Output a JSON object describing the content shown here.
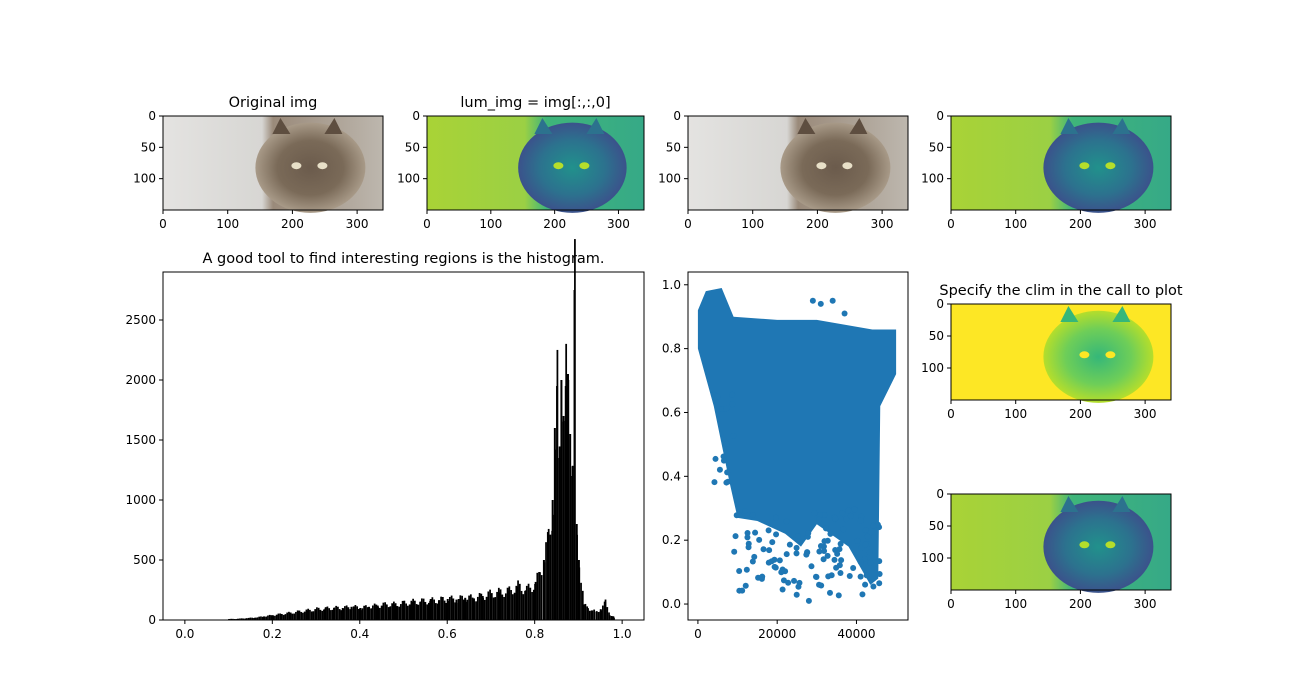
{
  "chart_data": [
    {
      "id": "p1",
      "type": "image",
      "title": "Original img",
      "colormap": "rgb",
      "xticks": [
        "0",
        "100",
        "200",
        "300"
      ],
      "yticks": [
        "0",
        "50",
        "100"
      ],
      "xlim": [
        0,
        340
      ],
      "ylim": [
        0,
        150
      ]
    },
    {
      "id": "p2",
      "type": "image",
      "title": "lum_img = img[:,:,0]",
      "colormap": "viridis",
      "xticks": [
        "0",
        "100",
        "200",
        "300"
      ],
      "yticks": [
        "0",
        "50",
        "100"
      ],
      "xlim": [
        0,
        340
      ],
      "ylim": [
        0,
        150
      ]
    },
    {
      "id": "p3",
      "type": "image",
      "title": "",
      "colormap": "rgb",
      "xticks": [
        "0",
        "100",
        "200",
        "300"
      ],
      "yticks": [
        "0",
        "50",
        "100"
      ],
      "xlim": [
        0,
        340
      ],
      "ylim": [
        0,
        150
      ]
    },
    {
      "id": "p4",
      "type": "image",
      "title": "",
      "colormap": "viridis",
      "xticks": [
        "0",
        "100",
        "200",
        "300"
      ],
      "yticks": [
        "0",
        "50",
        "100"
      ],
      "xlim": [
        0,
        340
      ],
      "ylim": [
        0,
        150
      ]
    },
    {
      "id": "hist",
      "type": "bar",
      "title": "A good tool to find interesting regions is the histogram.",
      "color": "#000000",
      "xlim": [
        -0.05,
        1.05
      ],
      "ylim": [
        0,
        2900
      ],
      "xticks": [
        "0.0",
        "0.2",
        "0.4",
        "0.6",
        "0.8",
        "1.0"
      ],
      "yticks": [
        "0",
        "500",
        "1000",
        "1500",
        "2000",
        "2500"
      ],
      "bin_width": 0.004,
      "x": [
        0.1,
        0.12,
        0.14,
        0.16,
        0.18,
        0.2,
        0.22,
        0.24,
        0.26,
        0.28,
        0.3,
        0.32,
        0.34,
        0.36,
        0.38,
        0.4,
        0.42,
        0.44,
        0.46,
        0.48,
        0.5,
        0.52,
        0.54,
        0.56,
        0.58,
        0.6,
        0.62,
        0.64,
        0.66,
        0.68,
        0.7,
        0.72,
        0.74,
        0.76,
        0.78,
        0.8,
        0.81,
        0.82,
        0.83,
        0.84,
        0.845,
        0.85,
        0.855,
        0.86,
        0.865,
        0.87,
        0.875,
        0.88,
        0.885,
        0.89,
        0.895,
        0.9,
        0.91,
        0.92,
        0.93,
        0.94,
        0.95,
        0.96,
        0.97,
        0.98
      ],
      "values": [
        8,
        10,
        15,
        20,
        30,
        40,
        50,
        60,
        70,
        80,
        90,
        95,
        100,
        100,
        110,
        100,
        110,
        120,
        130,
        130,
        140,
        150,
        155,
        160,
        165,
        175,
        170,
        185,
        180,
        200,
        220,
        230,
        240,
        280,
        250,
        300,
        400,
        500,
        700,
        1000,
        1600,
        1950,
        1350,
        2000,
        1700,
        1950,
        2050,
        1550,
        1200,
        2750,
        800,
        500,
        120,
        100,
        80,
        70,
        90,
        150,
        40,
        20
      ]
    },
    {
      "id": "scatter",
      "type": "scatter",
      "title": "",
      "color": "#1f77b4",
      "xlim": [
        -2500,
        53000
      ],
      "ylim": [
        -0.05,
        1.04
      ],
      "xticks": [
        "0",
        "20000",
        "40000"
      ],
      "yticks": [
        "0.0",
        "0.2",
        "0.4",
        "0.6",
        "0.8",
        "1.0"
      ]
    },
    {
      "id": "p7",
      "type": "image",
      "title": "Specify the clim in the call to plot",
      "colormap": "viridis",
      "xticks": [
        "0",
        "100",
        "200",
        "300"
      ],
      "yticks": [
        "0",
        "50",
        "100"
      ],
      "xlim": [
        0,
        340
      ],
      "ylim": [
        0,
        150
      ]
    },
    {
      "id": "p8",
      "type": "image",
      "title": "",
      "colormap": "viridis",
      "xticks": [
        "0",
        "100",
        "200",
        "300"
      ],
      "yticks": [
        "0",
        "50",
        "100"
      ],
      "xlim": [
        0,
        340
      ],
      "ylim": [
        0,
        150
      ]
    }
  ]
}
